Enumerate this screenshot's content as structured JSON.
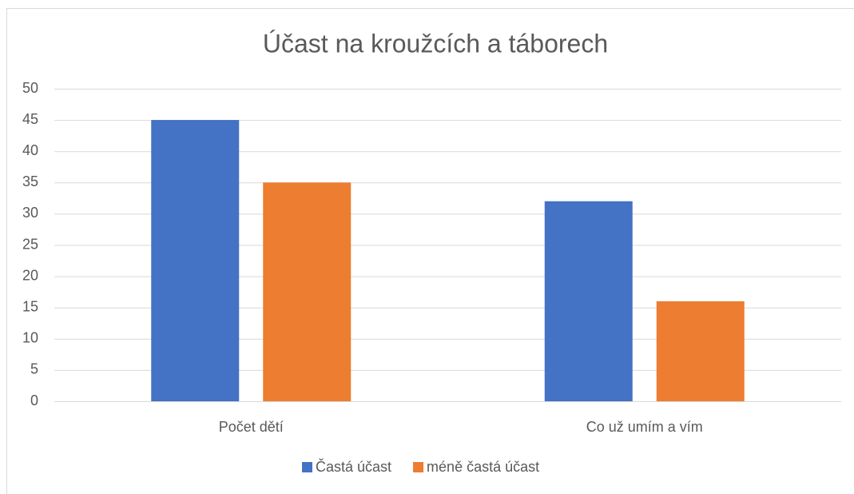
{
  "chart_data": {
    "type": "bar",
    "title": "Účast na kroužcích a táborech",
    "categories": [
      "Počet dětí",
      "Co už umím a vím"
    ],
    "series": [
      {
        "name": "Častá účast",
        "color": "#4472c4",
        "values": [
          45,
          32
        ]
      },
      {
        "name": "méně častá účast",
        "color": "#ed7d31",
        "values": [
          35,
          16
        ]
      }
    ],
    "ylim": [
      0,
      50
    ],
    "yticks": [
      0,
      5,
      10,
      15,
      20,
      25,
      30,
      35,
      40,
      45,
      50
    ],
    "grid": true,
    "legend": "bottom"
  }
}
